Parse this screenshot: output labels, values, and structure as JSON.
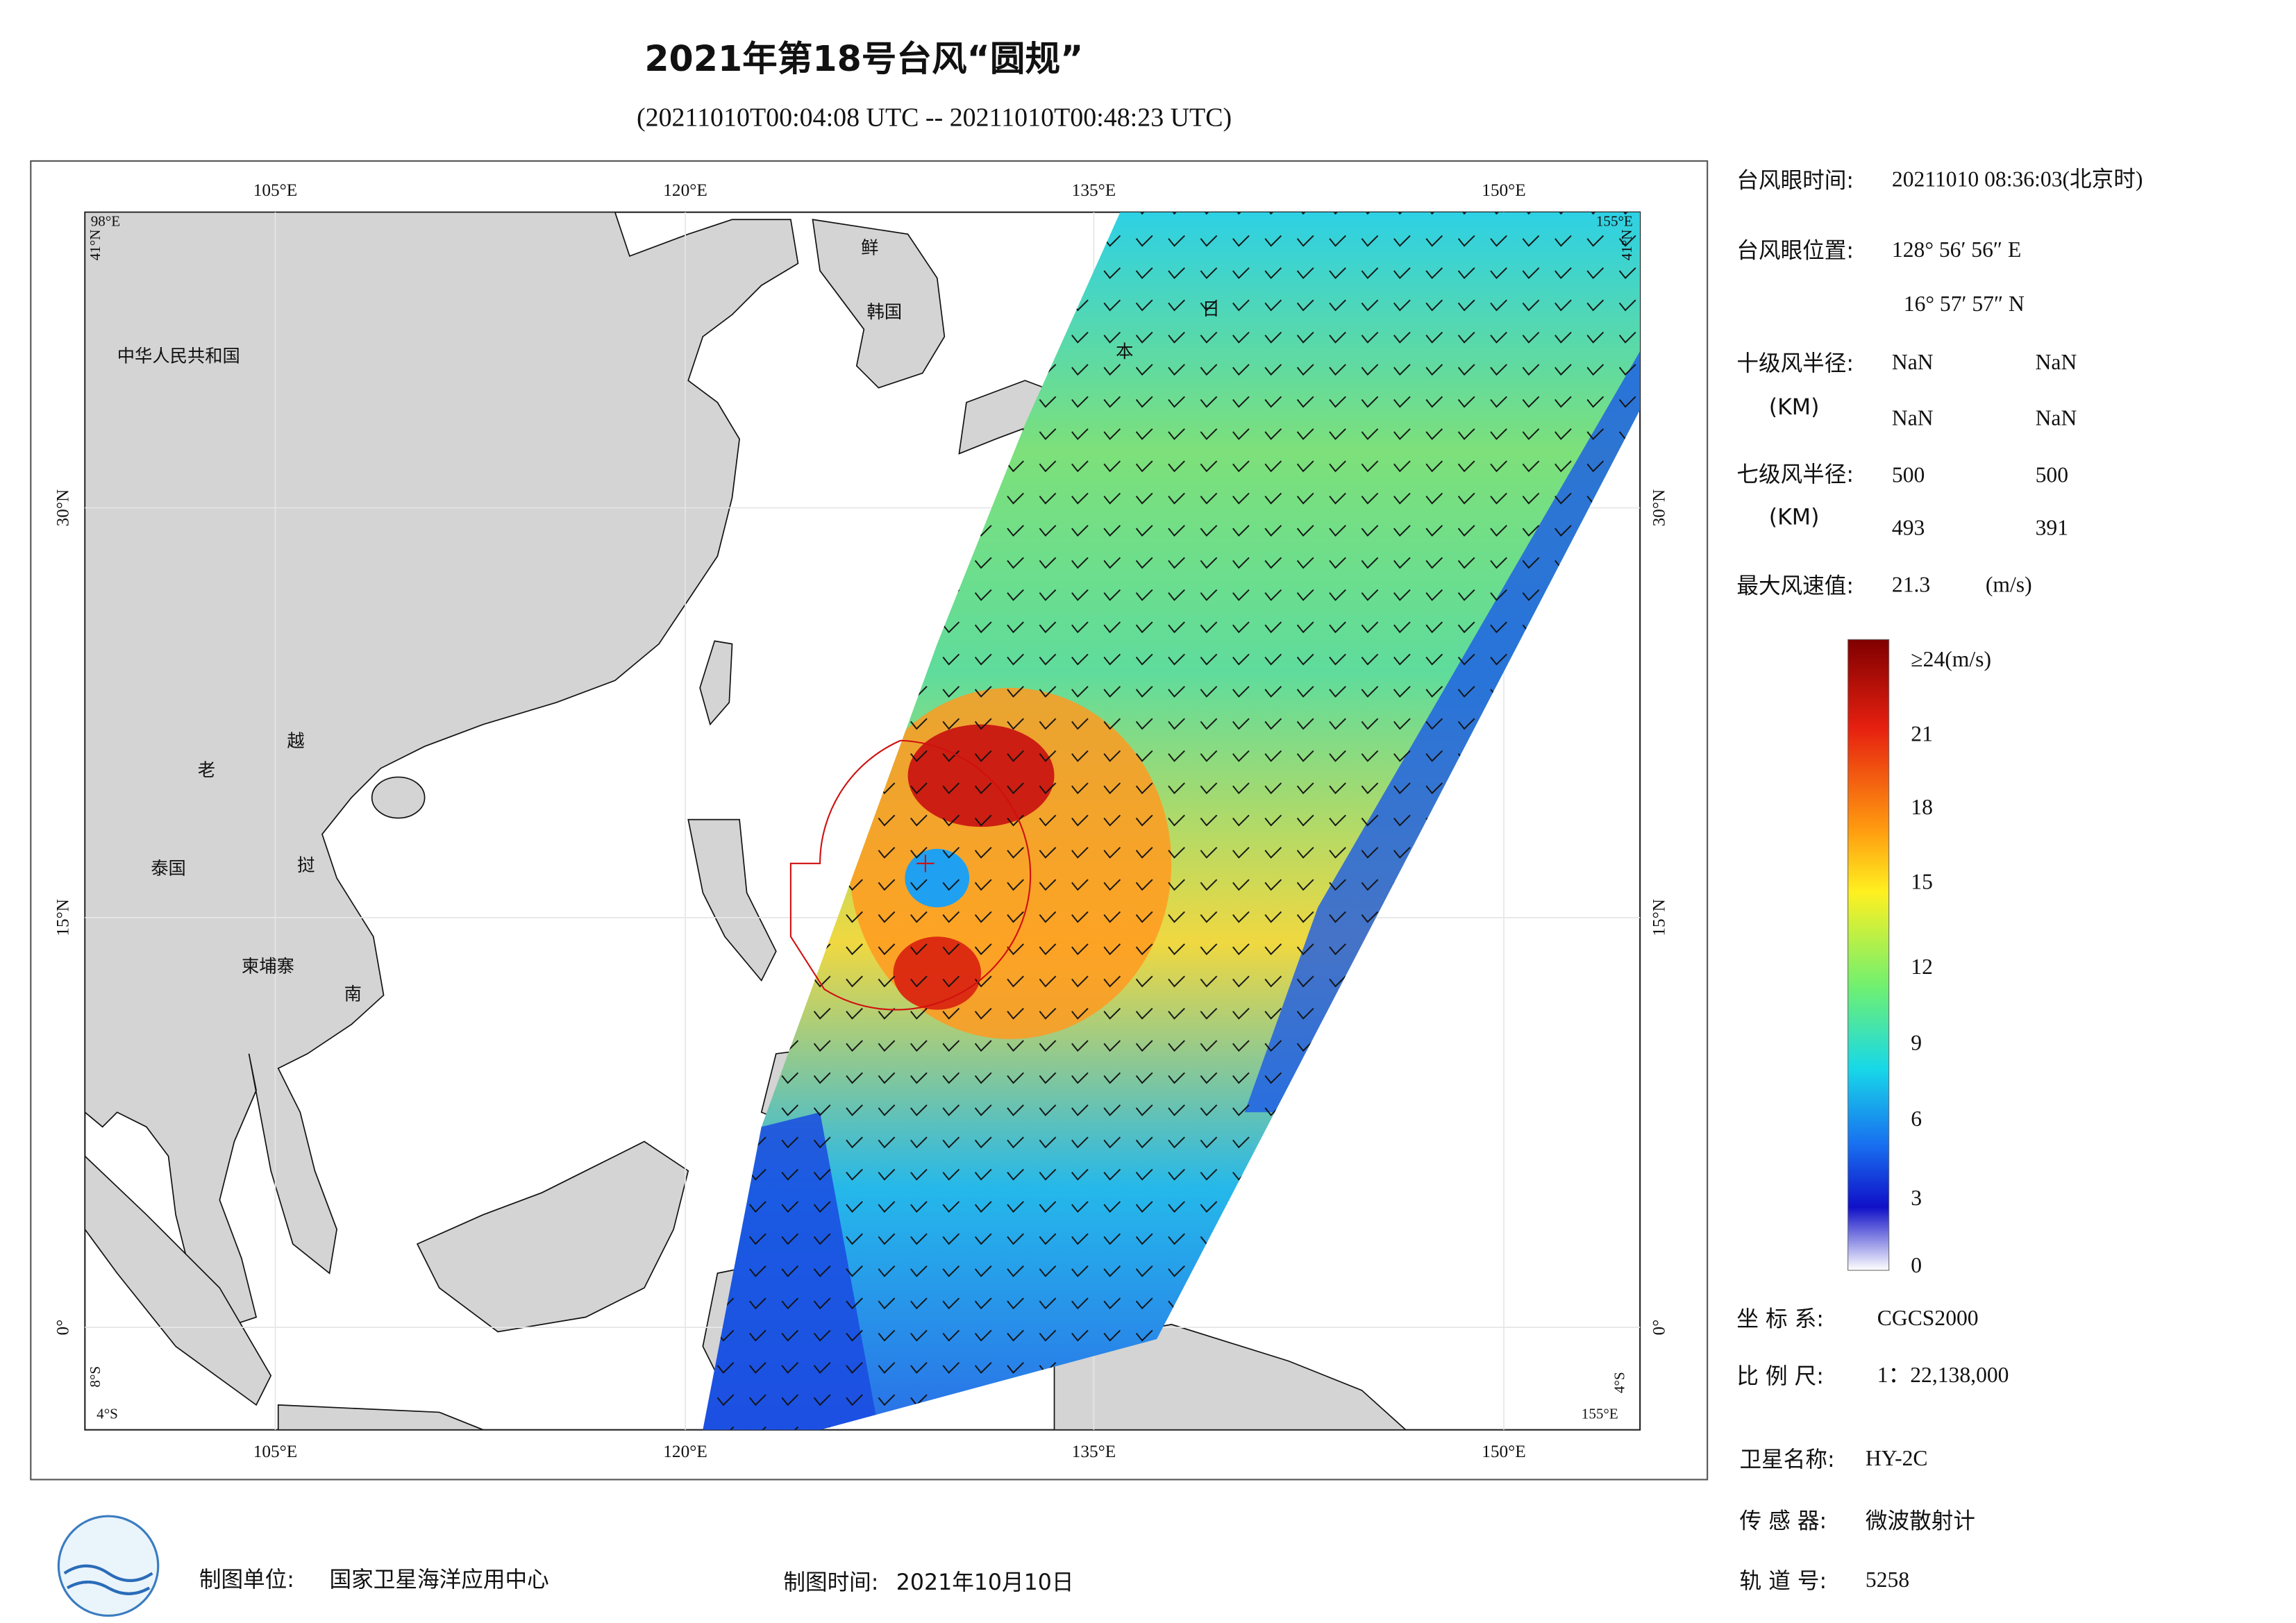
{
  "header": {
    "title": "2021年第18号台风“圆规”",
    "subtitle": "(20211010T00:04:08 UTC -- 20211010T00:48:23 UTC)"
  },
  "map": {
    "lon_labels": [
      "105°E",
      "120°E",
      "135°E",
      "150°E"
    ],
    "lat_labels": [
      "30°N",
      "15°N",
      "0°"
    ],
    "corners": {
      "top_left": [
        "98°E",
        "41°N"
      ],
      "top_right": [
        "155°E",
        "41°N"
      ],
      "bottom_left": [
        "4°S",
        "8°S"
      ],
      "bottom_right": [
        "155°E",
        "4°S"
      ]
    },
    "places": [
      "中华人民共和国",
      "老",
      "越",
      "泰国",
      "挝",
      "柬埔寨",
      "南",
      "鲜",
      "韩国",
      "日",
      "本"
    ]
  },
  "info": {
    "eye_time": {
      "label": "台风眼时间:",
      "value": "20211010 08:36:03(北京时)"
    },
    "eye_position": {
      "label": "台风眼位置:",
      "lon": "128° 56′ 56″ E",
      "lat": "16° 57′ 57″ N"
    },
    "r10": {
      "label": "十级风半径:",
      "unit": "(KM)",
      "values": [
        "NaN",
        "NaN",
        "NaN",
        "NaN"
      ]
    },
    "r7": {
      "label": "七级风半径:",
      "unit": "(KM)",
      "values": [
        "500",
        "500",
        "493",
        "391"
      ]
    },
    "max_wind": {
      "label": "最大风速值:",
      "value": "21.3",
      "unit": "(m/s)"
    },
    "crs": {
      "label": "坐 标 系:",
      "value": "CGCS2000"
    },
    "scale": {
      "label": "比 例 尺:",
      "value": "1：22,138,000"
    },
    "satellite": {
      "label": "卫星名称:",
      "value": "HY-2C"
    },
    "sensor": {
      "label": "传 感 器:",
      "value": "微波散射计"
    },
    "orbit": {
      "label": "轨 道 号:",
      "value": "5258"
    }
  },
  "colorbar": {
    "labels": [
      "≥24(m/s)",
      "21",
      "18",
      "15",
      "12",
      "9",
      "6",
      "3",
      "0"
    ]
  },
  "footer": {
    "unit_label": "制图单位:",
    "unit": "国家卫星海洋应用中心",
    "date_label": "制图时间:",
    "date": "2021年10月10日"
  }
}
